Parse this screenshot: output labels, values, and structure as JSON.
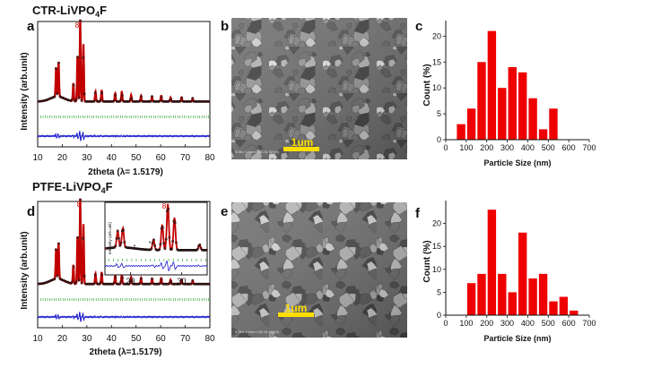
{
  "rows": [
    {
      "title": "CTR-LiVPO",
      "title_sub": "4",
      "title_tail": "F",
      "xrd": {
        "panel_label": "a",
        "ylabel": "Intensity (arb.unit)",
        "xlabel": "2theta (λ= 1.5179)",
        "xticks": [
          "10",
          "20",
          "30",
          "40",
          "50",
          "60",
          "70",
          "80"
        ],
        "peak_marker": "8"
      },
      "sem": {
        "panel_label": "b",
        "scale_label": "1um",
        "info_text": "5.0kV 9.9mm x30.0k SE(M)"
      },
      "hist": {
        "panel_label": "c",
        "ylabel": "Count (%)",
        "xlabel": "Particle Size (nm)",
        "xticks": [
          "0",
          "100",
          "200",
          "300",
          "400",
          "500",
          "600",
          "700"
        ],
        "yticks": [
          "0",
          "5",
          "10",
          "15",
          "20"
        ]
      }
    },
    {
      "title": "PTFE-LiVPO",
      "title_sub": "4",
      "title_tail": "F",
      "xrd": {
        "panel_label": "d",
        "ylabel": "Intensity (arb.unit)",
        "xlabel": "2theta (λ=1.5179)",
        "xticks": [
          "10",
          "20",
          "30",
          "40",
          "50",
          "60",
          "70",
          "80"
        ],
        "peak_marker": "8",
        "inset": {
          "ylabel": "Intensity (arb.unit)",
          "xticks": [
            "20",
            "30"
          ],
          "peak_marker": "8",
          "star_marker": "*"
        }
      },
      "sem": {
        "panel_label": "e",
        "scale_label": "1um",
        "info_text": "5.0kV 9.9mm x30.0k SE(M)"
      },
      "hist": {
        "panel_label": "f",
        "ylabel": "Count (%)",
        "xlabel": "Particle Size (nm)",
        "xticks": [
          "0",
          "100",
          "200",
          "300",
          "400",
          "500",
          "600",
          "700"
        ],
        "yticks": [
          "0",
          "5",
          "10",
          "15",
          "20"
        ]
      }
    }
  ],
  "chart_data": [
    {
      "type": "bar",
      "panel": "c",
      "x": [
        75,
        125,
        175,
        225,
        275,
        325,
        375,
        425,
        475,
        525
      ],
      "bin_width": 50,
      "values": [
        3,
        6,
        15,
        21,
        10,
        14,
        13,
        8,
        2,
        6
      ],
      "xlabel": "Particle Size (nm)",
      "ylabel": "Count (%)",
      "xlim": [
        0,
        700
      ],
      "ylim": [
        0,
        23
      ],
      "color": "#ee0000"
    },
    {
      "type": "bar",
      "panel": "f",
      "x": [
        125,
        175,
        225,
        275,
        325,
        375,
        425,
        475,
        525,
        575,
        625
      ],
      "bin_width": 50,
      "values": [
        7,
        9,
        23,
        9,
        5,
        18,
        8,
        9,
        3,
        4,
        1
      ],
      "xlabel": "Particle Size (nm)",
      "ylabel": "Count (%)",
      "xlim": [
        0,
        700
      ],
      "ylim": [
        0,
        25
      ],
      "color": "#ee0000"
    }
  ],
  "colors": {
    "fit": "#c00000",
    "observed": "#111111",
    "difference": "#1a1acc",
    "bragg": "#1a9a1a",
    "hist_bar": "#ee0000",
    "scale_bar": "#ffe000"
  }
}
